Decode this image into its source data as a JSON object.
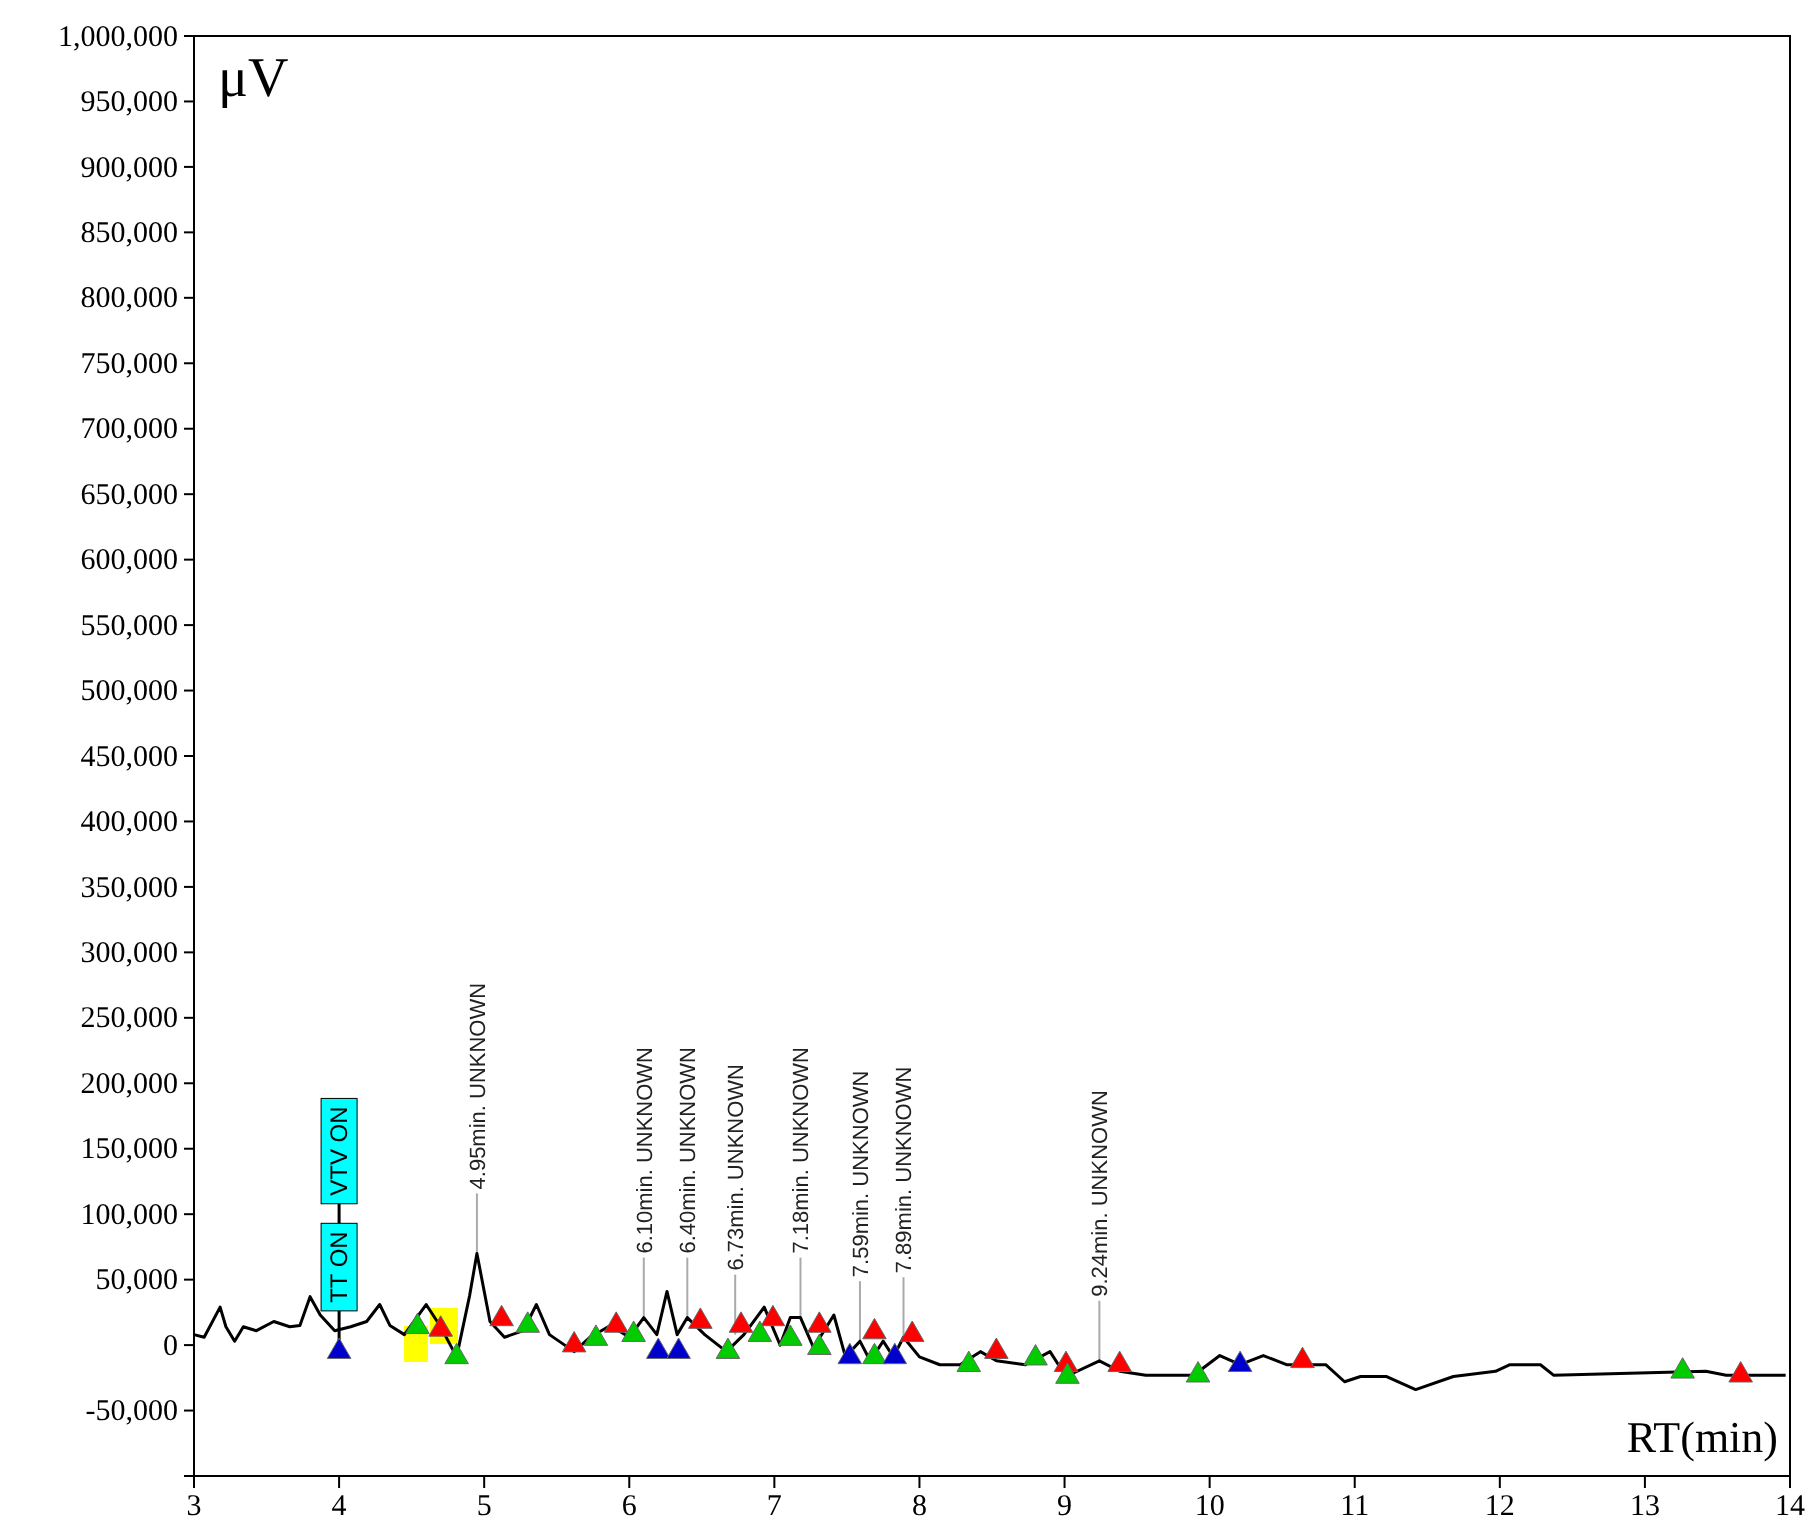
{
  "chart_data": {
    "type": "line",
    "xlabel": "RT(min)",
    "ylabel": "μV",
    "xlim": [
      3,
      14
    ],
    "xticks": [
      3,
      4,
      5,
      6,
      7,
      8,
      9,
      10,
      11,
      12,
      13,
      14
    ],
    "ylim": [
      -100000,
      1000000
    ],
    "yticks": [
      {
        "value": -50000,
        "label": "-50,000"
      },
      {
        "value": 0,
        "label": "0"
      },
      {
        "value": 50000,
        "label": "50,000"
      },
      {
        "value": 100000,
        "label": "100,000"
      },
      {
        "value": 150000,
        "label": "150,000"
      },
      {
        "value": 200000,
        "label": "200,000"
      },
      {
        "value": 250000,
        "label": "250,000"
      },
      {
        "value": 300000,
        "label": "300,000"
      },
      {
        "value": 350000,
        "label": "350,000"
      },
      {
        "value": 400000,
        "label": "400,000"
      },
      {
        "value": 450000,
        "label": "450,000"
      },
      {
        "value": 500000,
        "label": "500,000"
      },
      {
        "value": 550000,
        "label": "550,000"
      },
      {
        "value": 600000,
        "label": "600,000"
      },
      {
        "value": 650000,
        "label": "650,000"
      },
      {
        "value": 700000,
        "label": "700,000"
      },
      {
        "value": 750000,
        "label": "750,000"
      },
      {
        "value": 800000,
        "label": "800,000"
      },
      {
        "value": 850000,
        "label": "850,000"
      },
      {
        "value": 900000,
        "label": "900,000"
      },
      {
        "value": 950000,
        "label": "950,000"
      },
      {
        "value": 1000000,
        "label": "1,000,000"
      }
    ],
    "grid": false,
    "series": [
      {
        "color": "#000000",
        "x": [
          3.0,
          3.07,
          3.18,
          3.22,
          3.28,
          3.34,
          3.43,
          3.55,
          3.66,
          3.73,
          3.8,
          3.87,
          3.97,
          4.08,
          4.19,
          4.28,
          4.35,
          4.45,
          4.6,
          4.7,
          4.81,
          4.9,
          4.95,
          5.04,
          5.14,
          5.27,
          5.36,
          5.45,
          5.62,
          5.73,
          5.87,
          6.0,
          6.1,
          6.19,
          6.26,
          6.33,
          6.4,
          6.52,
          6.67,
          6.79,
          6.93,
          7.04,
          7.11,
          7.18,
          7.27,
          7.41,
          7.49,
          7.59,
          7.66,
          7.75,
          7.82,
          7.89,
          8.0,
          8.14,
          8.28,
          8.42,
          8.53,
          8.73,
          8.9,
          9.01,
          9.24,
          9.38,
          9.56,
          9.89,
          10.07,
          10.21,
          10.37,
          10.53,
          10.8,
          10.93,
          11.04,
          11.22,
          11.42,
          11.68,
          11.97,
          12.07,
          12.28,
          12.37,
          13.42,
          13.56,
          13.97
        ],
        "values": [
          8000,
          6000,
          29000,
          14000,
          3000,
          14000,
          11000,
          18000,
          14000,
          15000,
          37000,
          23000,
          11000,
          14000,
          18000,
          31000,
          15000,
          8000,
          31000,
          14000,
          -9000,
          38000,
          70000,
          18000,
          6000,
          11000,
          31000,
          8000,
          -5000,
          6000,
          15000,
          6000,
          21000,
          8000,
          41000,
          8000,
          21000,
          8000,
          -5000,
          8000,
          29000,
          0,
          21000,
          21000,
          -2000,
          23000,
          -9000,
          3000,
          -12000,
          3000,
          -9000,
          6000,
          -9000,
          -15000,
          -15000,
          -5000,
          -12000,
          -15000,
          -5000,
          -24000,
          -12000,
          -20000,
          -23000,
          -23000,
          -8000,
          -15000,
          -8000,
          -15000,
          -15000,
          -28000,
          -24000,
          -24000,
          -34000,
          -24000,
          -20000,
          -15000,
          -15000,
          -23000,
          -20000,
          -23000,
          -23000
        ]
      },
      {
        "type": "scatter",
        "color": "#ff0000",
        "marker": "triangle",
        "x": [
          4.7,
          5.12,
          5.62,
          5.91,
          6.49,
          6.77,
          6.99,
          7.31,
          7.69,
          7.95,
          8.53,
          9.01,
          9.38,
          10.64,
          13.66
        ],
        "values": [
          12000,
          20000,
          0,
          15000,
          18000,
          15000,
          20000,
          15000,
          10000,
          8000,
          -5000,
          -15000,
          -15000,
          -12000,
          -23000
        ]
      },
      {
        "type": "scatter",
        "color": "#00cc00",
        "marker": "triangle",
        "x": [
          4.54,
          4.81,
          5.3,
          5.77,
          6.03,
          6.68,
          6.9,
          7.11,
          7.31,
          7.69,
          8.34,
          8.8,
          9.02,
          9.92,
          13.26
        ],
        "values": [
          14000,
          -9000,
          15000,
          5000,
          8000,
          -5000,
          8000,
          5000,
          -2000,
          -9000,
          -15000,
          -10000,
          -24000,
          -23000,
          -20000
        ]
      },
      {
        "type": "scatter",
        "color": "#0000cc",
        "marker": "triangle",
        "x": [
          4.0,
          6.2,
          6.34,
          7.52,
          7.83,
          10.21
        ],
        "values": [
          -5000,
          -5000,
          -5000,
          -9000,
          -9000,
          -15000
        ]
      }
    ],
    "annotations": [
      {
        "text": "4.95min. UNKNOWN",
        "x": 4.95,
        "y": 70000
      },
      {
        "text": "6.10min. UNKNOWN",
        "x": 6.1,
        "y": 21000
      },
      {
        "text": "6.40min. UNKNOWN",
        "x": 6.4,
        "y": 21000
      },
      {
        "text": "6.73min. UNKNOWN",
        "x": 6.73,
        "y": 8000
      },
      {
        "text": "7.18min. UNKNOWN",
        "x": 7.18,
        "y": 21000
      },
      {
        "text": "7.59min. UNKNOWN",
        "x": 7.59,
        "y": 3000
      },
      {
        "text": "7.89min. UNKNOWN",
        "x": 7.89,
        "y": 6000
      },
      {
        "text": "9.24min. UNKNOWN",
        "x": 9.24,
        "y": -12000
      },
      "VTV ON"
    ],
    "ref_lines": [
      {
        "axis": "x",
        "value": 4.0,
        "label": "TT ON"
      }
    ]
  }
}
